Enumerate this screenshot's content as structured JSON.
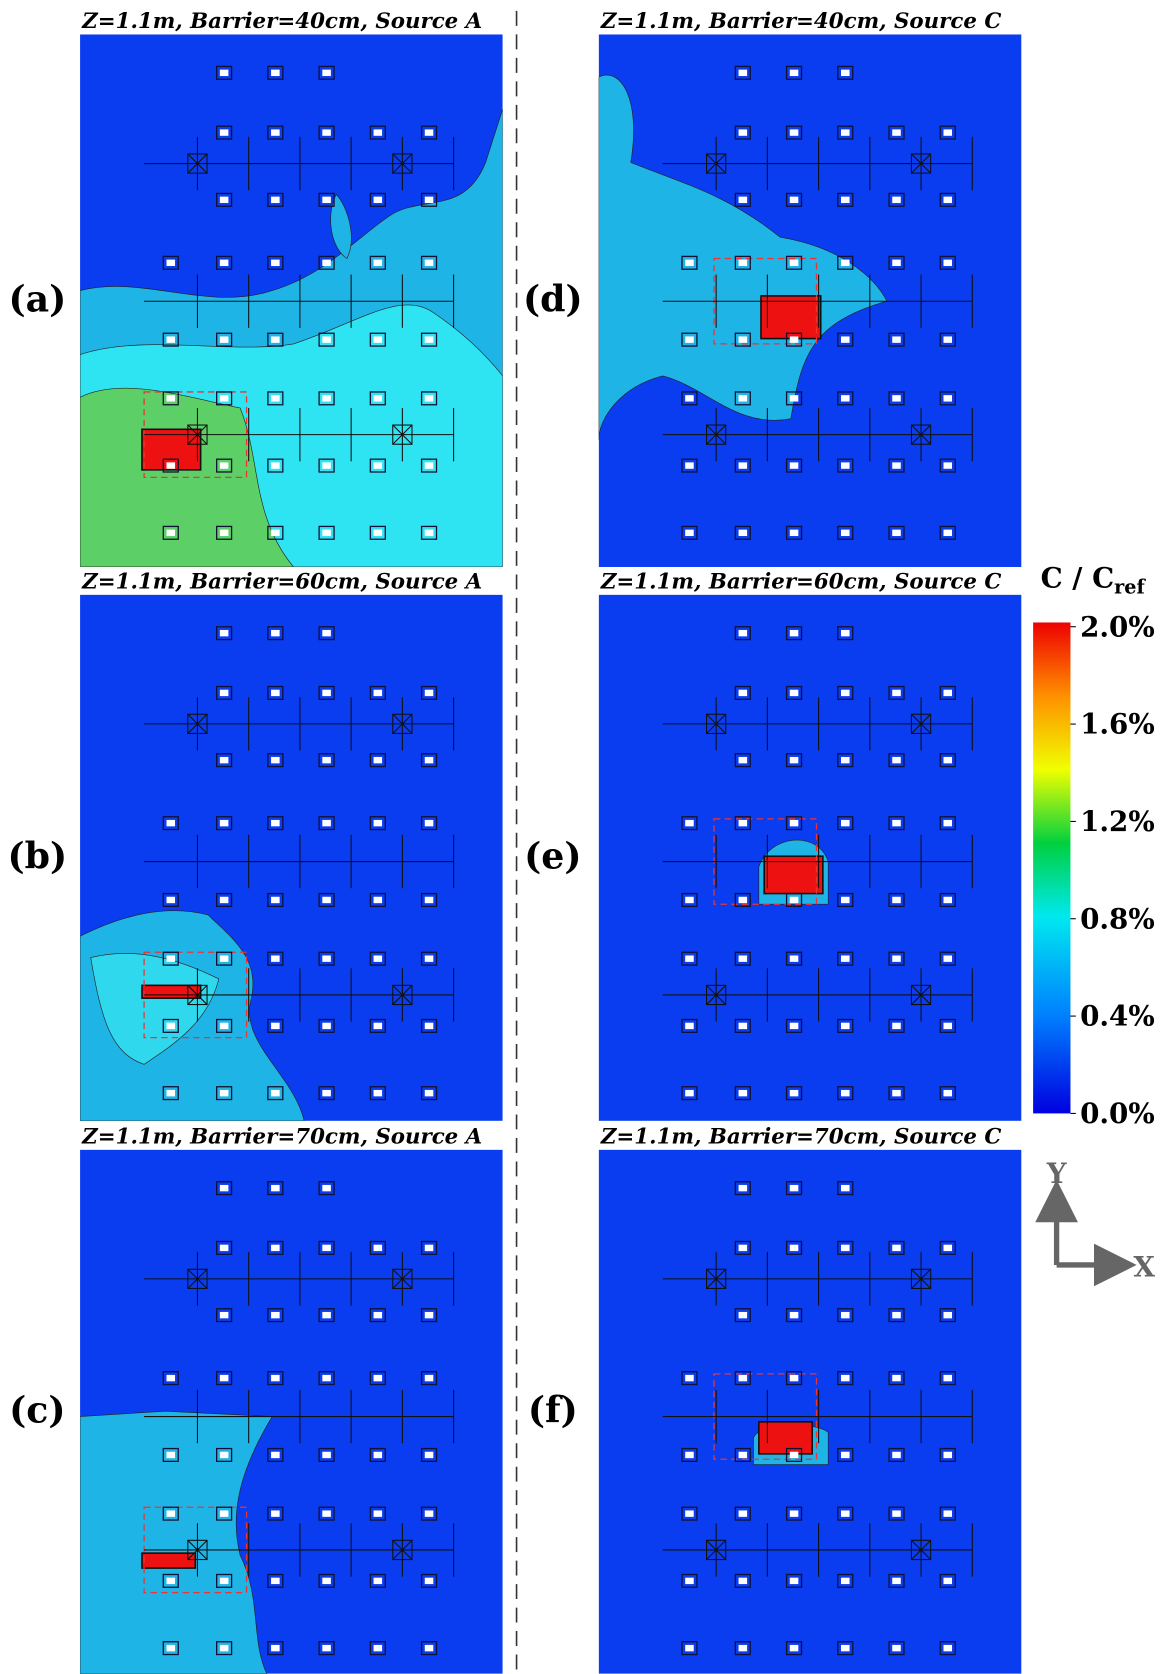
{
  "panels": [
    {
      "label": "(a)",
      "title": "Z=1.1m, Barrier=40cm, Source A"
    },
    {
      "label": "(b)",
      "title": "Z=1.1m, Barrier=60cm, Source A"
    },
    {
      "label": "(c)",
      "title": "Z=1.1m, Barrier=70cm, Source A"
    },
    {
      "label": "(d)",
      "title": "Z=1.1m, Barrier=40cm, Source C"
    },
    {
      "label": "(e)",
      "title": "Z=1.1m, Barrier=60cm, Source C"
    },
    {
      "label": "(f)",
      "title": "Z=1.1m, Barrier=70cm, Source C"
    }
  ],
  "colorbar": {
    "label": "C / C",
    "label_sub": "ref",
    "lim": [
      0,
      2
    ],
    "ticks": [
      {
        "value": 2.0,
        "label": "2.0%"
      },
      {
        "value": 1.6,
        "label": "1.6%"
      },
      {
        "value": 1.2,
        "label": "1.2%"
      },
      {
        "value": 0.8,
        "label": "0.8%"
      },
      {
        "value": 0.4,
        "label": "0.4%"
      },
      {
        "value": 0.0,
        "label": "0.0%"
      }
    ]
  },
  "axes": {
    "y": "Y",
    "x": "X"
  }
}
